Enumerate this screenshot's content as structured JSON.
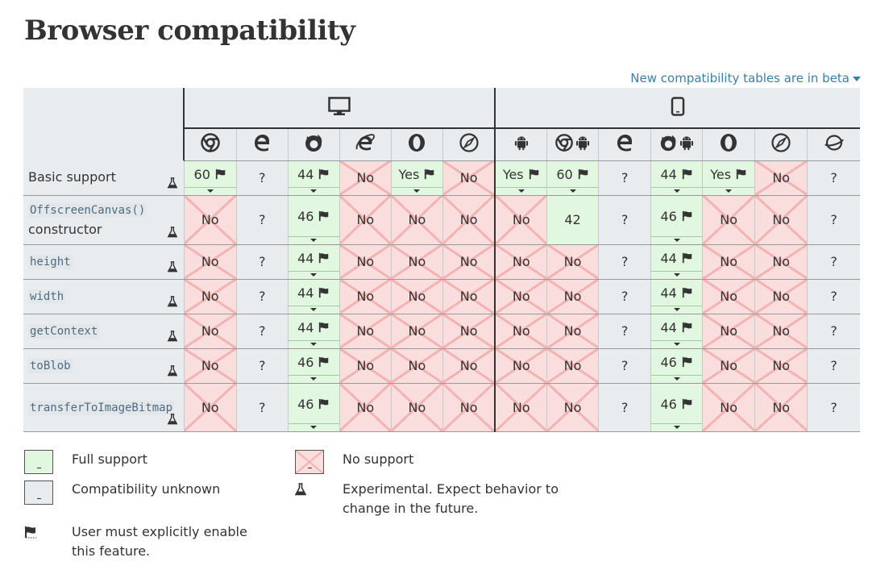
{
  "title": "Browser compatibility",
  "beta_link": "New compatibility tables are in beta",
  "platforms": [
    {
      "name": "desktop-icon"
    },
    {
      "name": "mobile-icon"
    }
  ],
  "browsers": [
    {
      "icon": "chrome-icon"
    },
    {
      "icon": "edge-icon"
    },
    {
      "icon": "firefox-icon"
    },
    {
      "icon": "internet-explorer-icon"
    },
    {
      "icon": "opera-icon"
    },
    {
      "icon": "safari-icon"
    },
    {
      "icon": "android-webview-icon"
    },
    {
      "icon": "chrome-android-icon"
    },
    {
      "icon": "edge-mobile-icon"
    },
    {
      "icon": "firefox-android-icon"
    },
    {
      "icon": "opera-android-icon"
    },
    {
      "icon": "safari-ios-icon"
    },
    {
      "icon": "samsung-internet-icon"
    }
  ],
  "features": [
    {
      "name": "Basic support",
      "code": false,
      "cells": [
        {
          "t": "y",
          "v": "60",
          "flag": true
        },
        {
          "t": "u",
          "v": "?"
        },
        {
          "t": "y",
          "v": "44",
          "flag": true
        },
        {
          "t": "n",
          "v": "No"
        },
        {
          "t": "y",
          "v": "Yes",
          "flag": true
        },
        {
          "t": "n",
          "v": "No"
        },
        {
          "t": "y",
          "v": "Yes",
          "flag": true
        },
        {
          "t": "y",
          "v": "60",
          "flag": true
        },
        {
          "t": "u",
          "v": "?"
        },
        {
          "t": "y",
          "v": "44",
          "flag": true
        },
        {
          "t": "y",
          "v": "Yes",
          "flag": true
        },
        {
          "t": "n",
          "v": "No"
        },
        {
          "t": "u",
          "v": "?"
        }
      ]
    },
    {
      "name": "OffscreenCanvas()",
      "name2": "constructor",
      "code": true,
      "cells": [
        {
          "t": "n",
          "v": "No"
        },
        {
          "t": "u",
          "v": "?"
        },
        {
          "t": "y",
          "v": "46",
          "flag": true
        },
        {
          "t": "n",
          "v": "No"
        },
        {
          "t": "n",
          "v": "No"
        },
        {
          "t": "n",
          "v": "No"
        },
        {
          "t": "n",
          "v": "No"
        },
        {
          "t": "y",
          "v": "42"
        },
        {
          "t": "u",
          "v": "?"
        },
        {
          "t": "y",
          "v": "46",
          "flag": true
        },
        {
          "t": "n",
          "v": "No"
        },
        {
          "t": "n",
          "v": "No"
        },
        {
          "t": "u",
          "v": "?"
        }
      ]
    },
    {
      "name": "height",
      "code": true,
      "cells": [
        {
          "t": "n",
          "v": "No"
        },
        {
          "t": "u",
          "v": "?"
        },
        {
          "t": "y",
          "v": "44",
          "flag": true
        },
        {
          "t": "n",
          "v": "No"
        },
        {
          "t": "n",
          "v": "No"
        },
        {
          "t": "n",
          "v": "No"
        },
        {
          "t": "n",
          "v": "No"
        },
        {
          "t": "n",
          "v": "No"
        },
        {
          "t": "u",
          "v": "?"
        },
        {
          "t": "y",
          "v": "44",
          "flag": true
        },
        {
          "t": "n",
          "v": "No"
        },
        {
          "t": "n",
          "v": "No"
        },
        {
          "t": "u",
          "v": "?"
        }
      ]
    },
    {
      "name": "width",
      "code": true,
      "cells": [
        {
          "t": "n",
          "v": "No"
        },
        {
          "t": "u",
          "v": "?"
        },
        {
          "t": "y",
          "v": "44",
          "flag": true
        },
        {
          "t": "n",
          "v": "No"
        },
        {
          "t": "n",
          "v": "No"
        },
        {
          "t": "n",
          "v": "No"
        },
        {
          "t": "n",
          "v": "No"
        },
        {
          "t": "n",
          "v": "No"
        },
        {
          "t": "u",
          "v": "?"
        },
        {
          "t": "y",
          "v": "44",
          "flag": true
        },
        {
          "t": "n",
          "v": "No"
        },
        {
          "t": "n",
          "v": "No"
        },
        {
          "t": "u",
          "v": "?"
        }
      ]
    },
    {
      "name": "getContext",
      "code": true,
      "cells": [
        {
          "t": "n",
          "v": "No"
        },
        {
          "t": "u",
          "v": "?"
        },
        {
          "t": "y",
          "v": "44",
          "flag": true
        },
        {
          "t": "n",
          "v": "No"
        },
        {
          "t": "n",
          "v": "No"
        },
        {
          "t": "n",
          "v": "No"
        },
        {
          "t": "n",
          "v": "No"
        },
        {
          "t": "n",
          "v": "No"
        },
        {
          "t": "u",
          "v": "?"
        },
        {
          "t": "y",
          "v": "44",
          "flag": true
        },
        {
          "t": "n",
          "v": "No"
        },
        {
          "t": "n",
          "v": "No"
        },
        {
          "t": "u",
          "v": "?"
        }
      ]
    },
    {
      "name": "toBlob",
      "code": true,
      "cells": [
        {
          "t": "n",
          "v": "No"
        },
        {
          "t": "u",
          "v": "?"
        },
        {
          "t": "y",
          "v": "46",
          "flag": true
        },
        {
          "t": "n",
          "v": "No"
        },
        {
          "t": "n",
          "v": "No"
        },
        {
          "t": "n",
          "v": "No"
        },
        {
          "t": "n",
          "v": "No"
        },
        {
          "t": "n",
          "v": "No"
        },
        {
          "t": "u",
          "v": "?"
        },
        {
          "t": "y",
          "v": "46",
          "flag": true
        },
        {
          "t": "n",
          "v": "No"
        },
        {
          "t": "n",
          "v": "No"
        },
        {
          "t": "u",
          "v": "?"
        }
      ]
    },
    {
      "name": "transferToImageBitmap",
      "code": true,
      "cells": [
        {
          "t": "n",
          "v": "No"
        },
        {
          "t": "u",
          "v": "?"
        },
        {
          "t": "y",
          "v": "46",
          "flag": true
        },
        {
          "t": "n",
          "v": "No"
        },
        {
          "t": "n",
          "v": "No"
        },
        {
          "t": "n",
          "v": "No"
        },
        {
          "t": "n",
          "v": "No"
        },
        {
          "t": "n",
          "v": "No"
        },
        {
          "t": "u",
          "v": "?"
        },
        {
          "t": "y",
          "v": "46",
          "flag": true
        },
        {
          "t": "n",
          "v": "No"
        },
        {
          "t": "n",
          "v": "No"
        },
        {
          "t": "u",
          "v": "?"
        }
      ]
    }
  ],
  "legend": {
    "full_support": "Full support",
    "no_support": "No support",
    "unknown": "Compatibility unknown",
    "experimental": "Experimental. Expect behavior to change in the future.",
    "flag": "User must explicitly enable this feature."
  },
  "colors": {
    "full": "#e2f7df",
    "no": "#fadddd",
    "unknown": "#e9ecee",
    "link": "#3a7fa6"
  }
}
